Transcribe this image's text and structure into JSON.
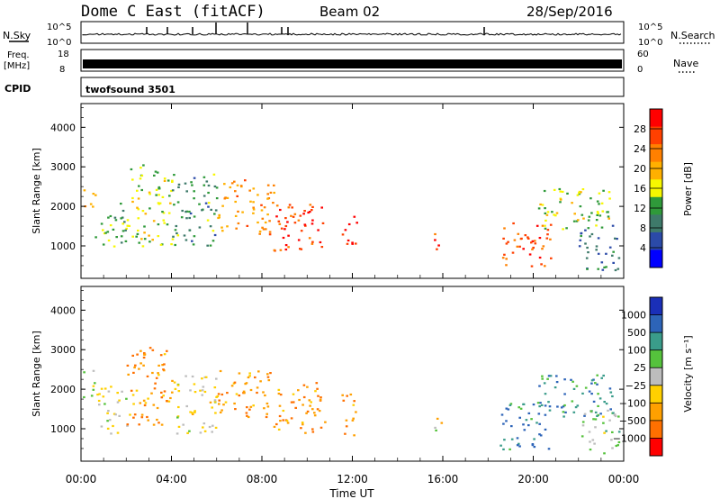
{
  "header": {
    "station": "Dome C East (fitACF)",
    "beam": "Beam 02",
    "date": "28/Sep/2016"
  },
  "top_panels": {
    "nsky": {
      "label": "N.Sky",
      "ticks": [
        "10^5",
        "10^0"
      ],
      "right_label": "N.Search"
    },
    "freq": {
      "label_line1": "Freq.",
      "label_line2": "[MHz]",
      "ticks": [
        "18",
        "8"
      ],
      "right_ticks": [
        "60",
        "0"
      ],
      "right_label": "Nave"
    },
    "cpid": {
      "label": "CPID",
      "program": "twofsound 3501"
    }
  },
  "axes": {
    "xlabel": "Time UT",
    "x_ticks": [
      "00:00",
      "04:00",
      "08:00",
      "12:00",
      "16:00",
      "20:00",
      "00:00"
    ],
    "ylabel": "Slant Range [km]",
    "y_ticks": [
      "4000",
      "3000",
      "2000",
      "1000"
    ]
  },
  "colors": {
    "power": [
      "#0000ff",
      "#2b4aa8",
      "#3e7a6a",
      "#2f9a3a",
      "#f7f700",
      "#ffb000",
      "#ff8000",
      "#ff4000",
      "#ff0000"
    ],
    "velocity": [
      "#1a2fb8",
      "#2d64b8",
      "#3a9c8a",
      "#55c23c",
      "#bdbdbd",
      "#ffd000",
      "#ffa000",
      "#ff7000",
      "#ff0000"
    ]
  },
  "chart_data": [
    {
      "type": "heatmap",
      "title": "",
      "xlabel": "Time UT",
      "ylabel": "Slant Range [km]",
      "xlim": [
        0,
        24
      ],
      "ylim": [
        180,
        4600
      ],
      "colorbar": {
        "label": "Power [dB]",
        "ticks": [
          "28",
          "24",
          "20",
          "16",
          "12",
          "8",
          "4"
        ],
        "range": [
          0,
          30
        ]
      },
      "regions": [
        {
          "t0": 0.0,
          "t1": 0.6,
          "r0": 1900,
          "r1": 2500,
          "value": 18
        },
        {
          "t0": 0.6,
          "t1": 2.0,
          "r0": 900,
          "r1": 2100,
          "value": 12
        },
        {
          "t0": 2.0,
          "t1": 4.0,
          "r0": 1000,
          "r1": 3100,
          "value": 14
        },
        {
          "t0": 4.0,
          "t1": 6.0,
          "r0": 1000,
          "r1": 2900,
          "value": 10
        },
        {
          "t0": 6.0,
          "t1": 8.5,
          "r0": 1300,
          "r1": 2700,
          "value": 20
        },
        {
          "t0": 8.5,
          "t1": 10.8,
          "r0": 900,
          "r1": 2200,
          "value": 26
        },
        {
          "t0": 11.5,
          "t1": 12.2,
          "r0": 900,
          "r1": 1800,
          "value": 28
        },
        {
          "t0": 15.6,
          "t1": 15.9,
          "r0": 700,
          "r1": 1500,
          "value": 26
        },
        {
          "t0": 18.5,
          "t1": 20.8,
          "r0": 500,
          "r1": 1600,
          "value": 24
        },
        {
          "t0": 20.2,
          "t1": 23.5,
          "r0": 1400,
          "r1": 2500,
          "value": 14
        },
        {
          "t0": 22.0,
          "t1": 23.8,
          "r0": 400,
          "r1": 1600,
          "value": 8
        }
      ]
    },
    {
      "type": "heatmap",
      "title": "",
      "xlabel": "Time UT",
      "ylabel": "Slant Range [km]",
      "xlim": [
        0,
        24
      ],
      "ylim": [
        180,
        4600
      ],
      "colorbar": {
        "label": "Velocity [m s⁻¹]",
        "ticks": [
          "1000",
          "500",
          "100",
          "25",
          "−25",
          "−100",
          "−500",
          "−1000"
        ],
        "range": [
          -1000,
          1000
        ]
      },
      "regions": [
        {
          "t0": 0.0,
          "t1": 0.6,
          "r0": 1800,
          "r1": 2500,
          "value": 25
        },
        {
          "t0": 0.6,
          "t1": 2.0,
          "r0": 900,
          "r1": 2100,
          "value": -100
        },
        {
          "t0": 2.0,
          "t1": 4.0,
          "r0": 1100,
          "r1": 3100,
          "value": -500
        },
        {
          "t0": 4.0,
          "t1": 6.0,
          "r0": 900,
          "r1": 2400,
          "value": -100
        },
        {
          "t0": 6.0,
          "t1": 8.5,
          "r0": 1300,
          "r1": 2500,
          "value": -500
        },
        {
          "t0": 8.5,
          "t1": 10.8,
          "r0": 900,
          "r1": 2200,
          "value": -500
        },
        {
          "t0": 11.5,
          "t1": 12.2,
          "r0": 800,
          "r1": 1900,
          "value": -500
        },
        {
          "t0": 15.6,
          "t1": 15.9,
          "r0": 800,
          "r1": 1500,
          "value": -100
        },
        {
          "t0": 18.5,
          "t1": 20.8,
          "r0": 500,
          "r1": 1700,
          "value": 500
        },
        {
          "t0": 20.2,
          "t1": 23.5,
          "r0": 1300,
          "r1": 2400,
          "value": 500
        },
        {
          "t0": 22.0,
          "t1": 23.8,
          "r0": 400,
          "r1": 1500,
          "value": 100
        }
      ]
    }
  ]
}
